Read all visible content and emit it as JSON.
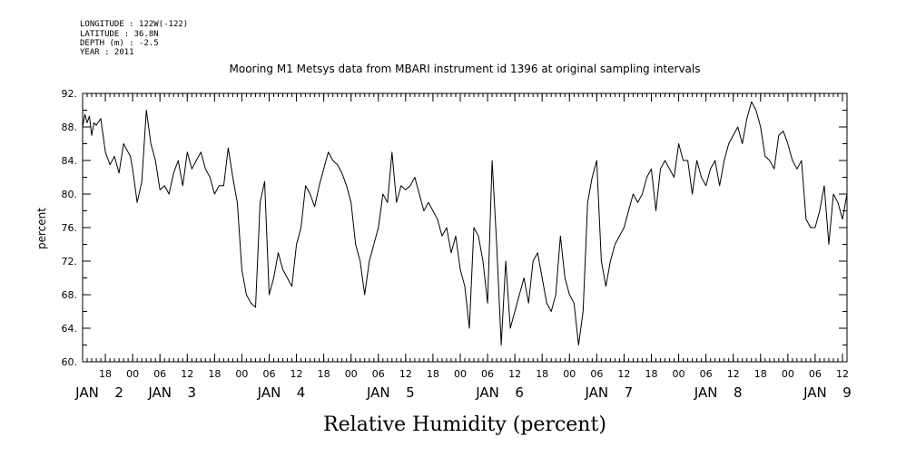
{
  "meta": {
    "longitude": "LONGITUDE : 122W(-122)",
    "latitude": "LATITUDE : 36.8N",
    "depth": "DEPTH (m) : -2.5",
    "year": "YEAR : 2011"
  },
  "chart_data": {
    "type": "line",
    "title": "Mooring M1 Metsys data from MBARI instrument id 1396 at original sampling intervals",
    "xlabel": "Relative Humidity (percent)",
    "ylabel": "percent",
    "ylim": [
      60,
      92
    ],
    "yticks": [
      60,
      64,
      68,
      72,
      76,
      80,
      84,
      88,
      92
    ],
    "ytick_labels": [
      "60.",
      "64.",
      "68.",
      "72.",
      "76.",
      "80.",
      "84.",
      "88.",
      "92."
    ],
    "x_unit": "hours from 2011-01-01 13:00",
    "xlim": [
      0,
      168
    ],
    "xticks_hours": [
      5,
      11,
      17,
      23,
      29,
      35,
      41,
      47,
      53,
      59,
      65,
      71,
      77,
      83,
      89,
      95,
      101,
      107,
      113,
      119,
      125,
      131,
      137,
      143,
      149,
      155,
      161,
      167
    ],
    "xtick_labels": [
      "18",
      "00",
      "06",
      "12",
      "18",
      "00",
      "06",
      "12",
      "18",
      "00",
      "06",
      "12",
      "18",
      "00",
      "06",
      "12",
      "18",
      "00",
      "06",
      "12",
      "18",
      "00",
      "06",
      "12",
      "18",
      "00",
      "06",
      "12"
    ],
    "day_labels": [
      {
        "hour": 1,
        "label": "JAN"
      },
      {
        "hour": 8,
        "label": "2"
      },
      {
        "hour": 17,
        "label": "JAN"
      },
      {
        "hour": 24,
        "label": "3"
      },
      {
        "hour": 41,
        "label": "JAN"
      },
      {
        "hour": 48,
        "label": "4"
      },
      {
        "hour": 65,
        "label": "JAN"
      },
      {
        "hour": 72,
        "label": "5"
      },
      {
        "hour": 89,
        "label": "JAN"
      },
      {
        "hour": 96,
        "label": "6"
      },
      {
        "hour": 113,
        "label": "JAN"
      },
      {
        "hour": 120,
        "label": "7"
      },
      {
        "hour": 137,
        "label": "JAN"
      },
      {
        "hour": 144,
        "label": "8"
      },
      {
        "hour": 161,
        "label": "JAN"
      },
      {
        "hour": 168,
        "label": "9"
      }
    ],
    "series": [
      {
        "x": [
          0,
          0.5,
          1,
          1.5,
          2,
          2.5,
          3,
          4,
          5,
          6,
          7,
          8,
          9,
          10,
          10.5,
          11,
          12,
          13,
          14,
          15,
          16,
          17,
          18,
          19,
          20,
          21,
          22,
          23,
          24,
          25,
          26,
          27,
          28,
          29,
          30,
          31,
          32,
          33,
          34,
          35,
          36,
          37,
          38,
          39,
          40,
          41,
          42,
          43,
          44,
          45,
          46,
          47,
          48,
          49,
          50,
          51,
          52,
          53,
          54,
          55,
          56,
          57,
          58,
          59,
          60,
          61,
          62,
          63,
          64,
          65,
          66,
          67,
          68,
          69,
          70,
          71,
          72,
          73,
          74,
          75,
          76,
          77,
          78,
          79,
          80,
          81,
          82,
          83,
          84,
          85,
          86,
          87,
          88,
          89,
          90,
          91,
          92,
          93,
          94,
          95,
          96,
          97,
          98,
          99,
          100,
          101,
          102,
          103,
          104,
          105,
          106,
          107,
          108,
          109,
          110,
          111,
          112,
          113,
          114,
          115,
          116,
          117,
          118,
          119,
          120,
          121,
          122,
          123,
          124,
          125,
          126,
          127,
          128,
          129,
          130,
          131,
          132,
          133,
          134,
          135,
          136,
          137,
          138,
          139,
          140,
          141,
          142,
          143,
          144,
          145,
          146,
          147,
          148,
          149,
          150,
          151,
          152,
          153,
          154,
          155,
          156,
          157,
          158,
          159,
          160,
          161,
          162,
          163,
          164,
          165,
          166,
          167,
          168
        ],
        "y": [
          88,
          89.5,
          88.5,
          89.3,
          87,
          88.5,
          88.2,
          89,
          85,
          83.5,
          84.5,
          82.5,
          86,
          85,
          84.5,
          83,
          79,
          81.5,
          90,
          86,
          84,
          80.5,
          81,
          80,
          82.5,
          84,
          81,
          85,
          83,
          84,
          85,
          83,
          82,
          80,
          81,
          81,
          85.5,
          82,
          79,
          71,
          68,
          67,
          66.5,
          79,
          81.5,
          68,
          70,
          73,
          71,
          70,
          69,
          74,
          76,
          81,
          80,
          78.5,
          81,
          83,
          85,
          84,
          83.5,
          82.5,
          81,
          79,
          74,
          72,
          68,
          72,
          74,
          76,
          80,
          79,
          85,
          79,
          81,
          80.5,
          81,
          82,
          80,
          78,
          79,
          78,
          77,
          75,
          76,
          73,
          75,
          71,
          69,
          64,
          76,
          75,
          72,
          67,
          84,
          74,
          62,
          72,
          64,
          66,
          68,
          70,
          67,
          72,
          73,
          70,
          67,
          66,
          68,
          75,
          70,
          68,
          67,
          62,
          66,
          79,
          82,
          84,
          72,
          69,
          72,
          74,
          75,
          76,
          78,
          80,
          79,
          80,
          82,
          83,
          78,
          83,
          84,
          83,
          82,
          86,
          84,
          84,
          80,
          84,
          82,
          81,
          83,
          84,
          81,
          84,
          86,
          87,
          88,
          86,
          89,
          91,
          90,
          88,
          84.5,
          84,
          83,
          87,
          87.5,
          86,
          84,
          83,
          84,
          77,
          76,
          76,
          78,
          81,
          74,
          80,
          79,
          77,
          80
        ]
      }
    ]
  }
}
